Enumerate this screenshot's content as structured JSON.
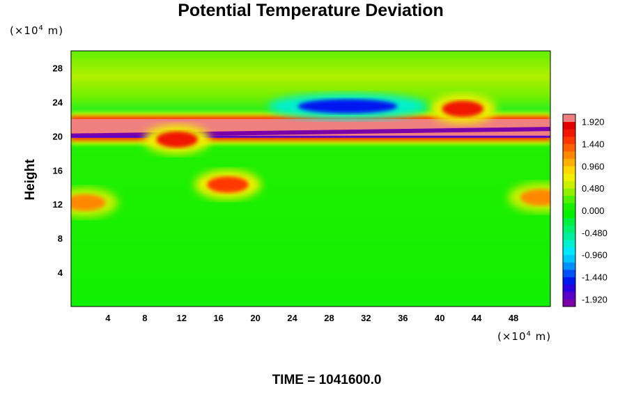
{
  "chart_data": {
    "type": "heatmap",
    "title": "Potential Temperature Deviation",
    "ylabel": "Height",
    "y_unit": {
      "prefix": "(×10",
      "exp": "4",
      "suffix": " m)"
    },
    "x_unit": {
      "prefix": "(×10",
      "exp": "4",
      "suffix": " m)"
    },
    "xlim": [
      0,
      52
    ],
    "ylim": [
      0,
      30
    ],
    "x_ticks": [
      4,
      8,
      12,
      16,
      20,
      24,
      28,
      32,
      36,
      40,
      44,
      48
    ],
    "y_ticks": [
      4,
      8,
      12,
      16,
      20,
      24,
      28
    ],
    "colorbar": {
      "range": [
        -2.08,
        2.08
      ],
      "step": 0.16,
      "tick_values": [
        1.92,
        1.44,
        0.96,
        0.48,
        0.0,
        -0.48,
        -0.96,
        -1.44,
        -1.92
      ],
      "tick_labels": [
        "1.920",
        "1.440",
        "0.960",
        "0.480",
        "0.000",
        "-0.480",
        "-0.960",
        "-1.440",
        "-1.920"
      ],
      "colors": [
        "#7a00a8",
        "#5a00c8",
        "#2a00e0",
        "#0018f0",
        "#0050f8",
        "#0090ff",
        "#00c8ff",
        "#00e8ff",
        "#00f0d0",
        "#00f0a0",
        "#00f070",
        "#00f040",
        "#00f000",
        "#18f000",
        "#50f000",
        "#90f000",
        "#c8f000",
        "#f0f000",
        "#ffd800",
        "#ffb000",
        "#ff8800",
        "#ff6000",
        "#ff3800",
        "#f01800",
        "#e00000",
        "#f08080"
      ]
    },
    "features": [
      {
        "kind": "band",
        "x": [
          0,
          52
        ],
        "y": [
          19.8,
          22.0
        ],
        "value": 1.92,
        "note": "thin lines near 20"
      },
      {
        "kind": "blob",
        "x": 42.5,
        "y": 23.2,
        "value": 1.6
      },
      {
        "kind": "blob",
        "x": 30.0,
        "y": 23.5,
        "value": -1.5
      },
      {
        "kind": "blob",
        "x": 11.5,
        "y": 19.6,
        "value": 1.7
      },
      {
        "kind": "blob",
        "x": 17.0,
        "y": 14.3,
        "value": 1.5
      },
      {
        "kind": "blob",
        "x": 1.5,
        "y": 12.2,
        "value": 1.2
      },
      {
        "kind": "blob",
        "x": 51.0,
        "y": 12.8,
        "value": 1.2
      }
    ]
  },
  "time_label": "TIME = 1041600.0"
}
